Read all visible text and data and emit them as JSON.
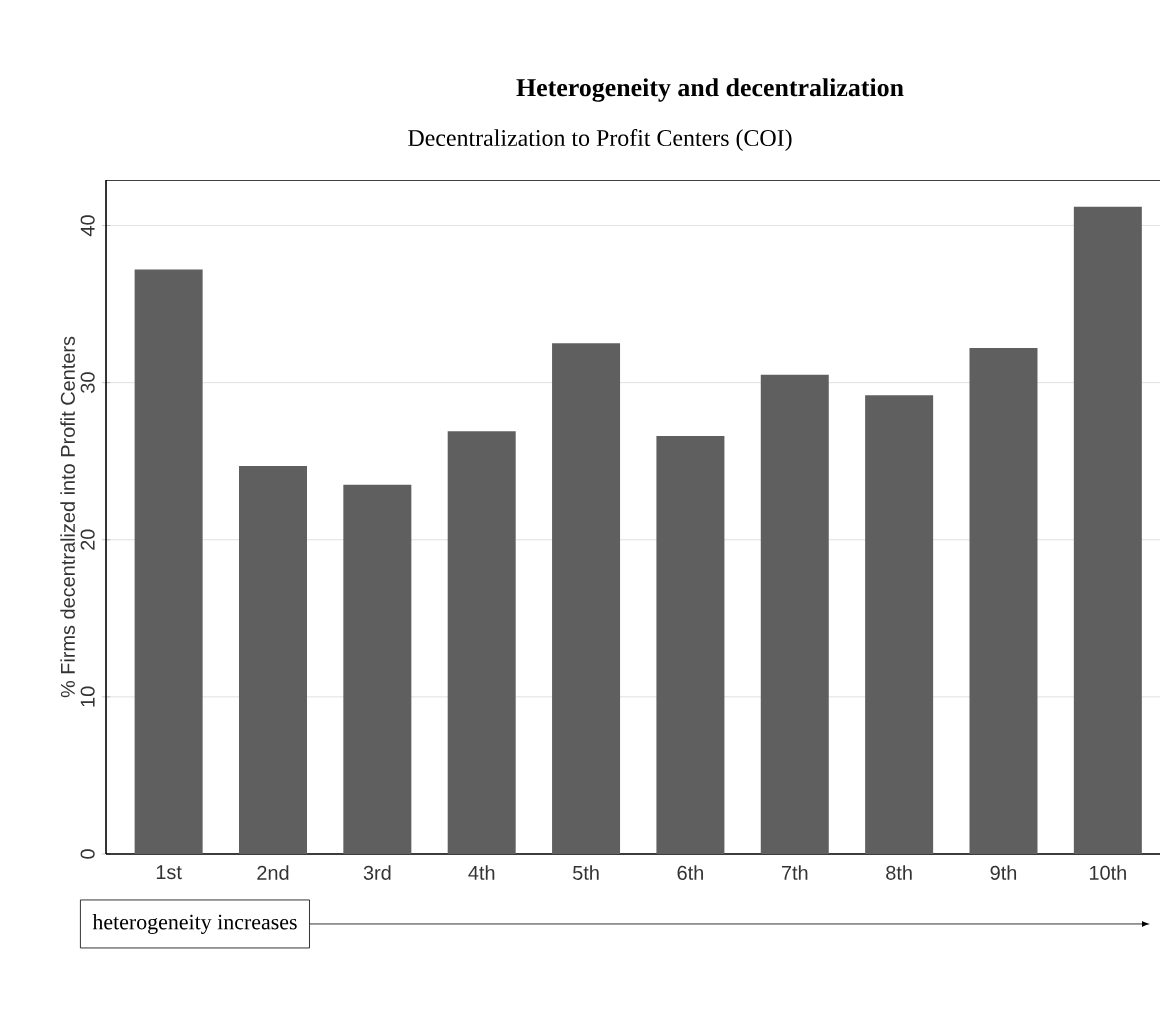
{
  "chart_data": {
    "type": "bar",
    "title": "Heterogeneity and decentralization",
    "subtitle": "Decentralization to Profit Centers (COI)",
    "ylabel": "% Firms decentralized into Profit Centers",
    "categories": [
      "1st",
      "2nd",
      "3rd",
      "4th",
      "5th",
      "6th",
      "7th",
      "8th",
      "9th",
      "10th"
    ],
    "values": [
      37.2,
      24.7,
      23.5,
      26.9,
      32.5,
      26.6,
      30.5,
      29.2,
      32.2,
      41.2
    ],
    "color": "#5f5f5f",
    "ylim": [
      0,
      42.9
    ],
    "yticks": [
      0,
      10,
      20,
      30,
      40
    ],
    "grid": "y",
    "annotations": [
      "heterogeneity increases"
    ]
  }
}
